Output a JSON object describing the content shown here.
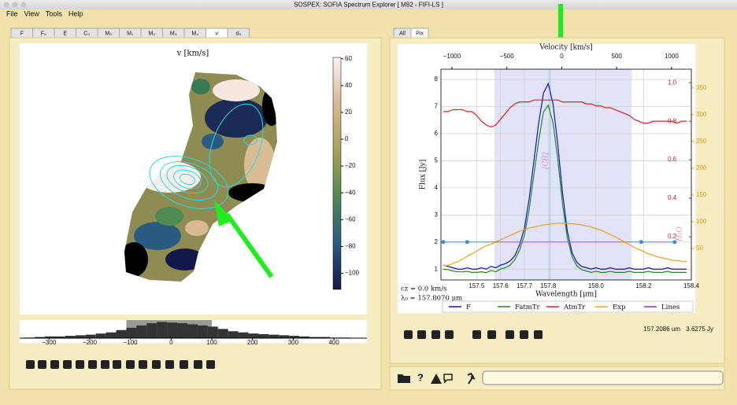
{
  "window": {
    "title": "SOSPEX: SOFIA Spectrum Explorer [ M82 - FIFI-LS ]"
  },
  "menu": [
    "File",
    "View",
    "Tools",
    "Help"
  ],
  "left_tabs": [
    "F",
    "Fᵤ",
    "E",
    "C₀",
    "M₀",
    "M₁",
    "M₂",
    "M₃",
    "M₄",
    "v",
    "σᵥ"
  ],
  "right_tabs": [
    "All",
    "Pix"
  ],
  "map": {
    "title": "v [km/s]",
    "clim": [
      -112,
      61
    ],
    "cticks": [
      60,
      40,
      20,
      0,
      {
        "value": -20,
        "label": "−20"
      },
      {
        "value": -40,
        "label": "−40"
      },
      {
        "value": -60,
        "label": "−60"
      },
      {
        "value": -80,
        "label": "−80"
      },
      {
        "value": -100,
        "label": "−100"
      }
    ]
  },
  "histogram": {
    "xlim": [
      -372,
      481
    ],
    "ylim": [
      0,
      30
    ],
    "selection": [
      -110,
      100
    ],
    "xticks": [
      {
        "value": -300,
        "label": "−300"
      },
      {
        "value": -200,
        "label": "−200"
      },
      {
        "value": -100,
        "label": "−100"
      },
      0,
      100,
      200,
      300,
      400
    ],
    "bins": [
      -360,
      -335,
      -310,
      -285,
      -260,
      -235,
      -210,
      -185,
      -160,
      -135,
      -110,
      -85,
      -60,
      -35,
      -10,
      15,
      40,
      65,
      90,
      115,
      140,
      165,
      190,
      215,
      240,
      265,
      290,
      315,
      340,
      365,
      390,
      415,
      440
    ],
    "counts": [
      1,
      2,
      3,
      3,
      4,
      5,
      6,
      8,
      10,
      14,
      18,
      22,
      26,
      28,
      27,
      26,
      24,
      22,
      20,
      16,
      12,
      10,
      8,
      7,
      6,
      5,
      4,
      3,
      2,
      2,
      1,
      1
    ]
  },
  "spectrum": {
    "xlabel": "Wavelength [μm]",
    "ylabel": "Flux [Jy]",
    "top_label": "Velocity [km/s]",
    "xlim": [
      157.35,
      158.4
    ],
    "xticks": [
      157.5,
      157.6,
      157.7,
      157.8,
      {
        "value": 158,
        "label": "158.0"
      },
      158.2,
      158.4
    ],
    "vlim": [
      -1100,
      1180
    ],
    "vticks": [
      {
        "value": -1000,
        "label": "−1000"
      },
      {
        "value": -500,
        "label": "−500"
      },
      0,
      500,
      1000
    ],
    "ylim": [
      0.6,
      8.38
    ],
    "yticks": [
      1,
      2,
      3,
      4,
      5,
      6,
      7,
      8
    ],
    "y2lim": [
      -0.024,
      1.07
    ],
    "y2ticks": [
      0.2,
      0.4,
      0.6,
      0.8,
      {
        "value": 1,
        "label": "1.0"
      }
    ],
    "y2color": "#d01818",
    "y3lim": [
      -9,
      385
    ],
    "y3ticks": [
      50,
      100,
      150,
      200,
      250,
      300,
      350
    ],
    "y3color": "#e0961a",
    "region": [
      157.574,
      158.15
    ],
    "rest_line": 157.807,
    "x": [
      157.36,
      157.38,
      157.4,
      157.42,
      157.44,
      157.46,
      157.48,
      157.5,
      157.52,
      157.54,
      157.56,
      157.58,
      157.6,
      157.62,
      157.64,
      157.66,
      157.68,
      157.7,
      157.72,
      157.74,
      157.76,
      157.78,
      157.8,
      157.82,
      157.84,
      157.86,
      157.88,
      157.9,
      157.92,
      157.94,
      157.96,
      157.98,
      158.0,
      158.02,
      158.04,
      158.06,
      158.08,
      158.1,
      158.12,
      158.14,
      158.16,
      158.18,
      158.2,
      158.22,
      158.24,
      158.26,
      158.28,
      158.3,
      158.32,
      158.34,
      158.36,
      158.38
    ],
    "series": [
      {
        "name": "F",
        "color": "#1212c8",
        "values": [
          1.15,
          1.1,
          1.05,
          1.0,
          1.0,
          1.05,
          1.0,
          1.0,
          1.05,
          1.0,
          1.1,
          1.05,
          1.15,
          1.2,
          1.3,
          1.5,
          1.9,
          2.5,
          3.6,
          5.0,
          6.4,
          7.5,
          7.85,
          7.1,
          5.6,
          3.8,
          2.4,
          1.6,
          1.25,
          1.1,
          1.05,
          1.0,
          1.05,
          1.0,
          1.0,
          1.05,
          1.0,
          1.0,
          1.0,
          1.05,
          1.0,
          1.0,
          1.0,
          1.05,
          1.0,
          1.0,
          1.0,
          1.05,
          1.0,
          1.0,
          1.0,
          1.0
        ]
      },
      {
        "name": "FatmTr",
        "color": "#1c8c1c",
        "values": [
          1.0,
          0.98,
          0.93,
          0.9,
          0.9,
          0.92,
          0.88,
          0.88,
          0.9,
          0.87,
          0.95,
          0.9,
          1.0,
          1.05,
          1.15,
          1.35,
          1.7,
          2.25,
          3.2,
          4.5,
          5.75,
          6.8,
          7.05,
          6.4,
          5.05,
          3.4,
          2.15,
          1.45,
          1.12,
          0.98,
          0.93,
          0.88,
          0.92,
          0.88,
          0.88,
          0.92,
          0.88,
          0.88,
          0.88,
          0.92,
          0.88,
          0.88,
          0.88,
          0.92,
          0.88,
          0.88,
          0.88,
          0.92,
          0.88,
          0.88,
          0.88,
          0.88
        ]
      },
      {
        "name": "AtmTr",
        "color": "#e02020",
        "axis": "y2",
        "values": [
          0.85,
          0.85,
          0.86,
          0.86,
          0.86,
          0.85,
          0.85,
          0.83,
          0.8,
          0.78,
          0.77,
          0.78,
          0.81,
          0.84,
          0.87,
          0.89,
          0.9,
          0.9,
          0.9,
          0.91,
          0.91,
          0.91,
          0.91,
          0.91,
          0.91,
          0.9,
          0.9,
          0.9,
          0.9,
          0.9,
          0.89,
          0.89,
          0.88,
          0.88,
          0.87,
          0.87,
          0.86,
          0.85,
          0.84,
          0.83,
          0.81,
          0.8,
          0.79,
          0.79,
          0.8,
          0.8,
          0.8,
          0.8,
          0.8,
          0.79,
          0.8,
          0.8
        ]
      },
      {
        "name": "Exp",
        "color": "#f0a020",
        "axis": "y3",
        "values": [
          18,
          18,
          22,
          25,
          30,
          35,
          40,
          45,
          50,
          55,
          58,
          62,
          66,
          70,
          74,
          78,
          82,
          85,
          88,
          90,
          92,
          94,
          95,
          96,
          97,
          97,
          97,
          96,
          95,
          94,
          92,
          90,
          87,
          84,
          80,
          76,
          72,
          67,
          62,
          57,
          52,
          48,
          44,
          40,
          37,
          34,
          32,
          30,
          28,
          27,
          26,
          25
        ]
      }
    ],
    "lines_legend": {
      "name": "Lines",
      "color": "#9a2ea8"
    },
    "continuum": {
      "x": [
        157.36,
        157.46,
        158.19,
        158.33
      ],
      "y": [
        2,
        2,
        2,
        2
      ],
      "color": "#3a90d0"
    },
    "annotations": [
      {
        "text": "[CII]",
        "x": 157.79,
        "y": 5
      },
      {
        "text": "H₂O",
        "x": 158.35,
        "y": 2.3
      }
    ],
    "info": [
      "cz = 0.0 km/s",
      "λ₀ = 157.8070 μm"
    ]
  },
  "status": {
    "wavelength": "157.2086 um",
    "flux": "3.6275 Jy"
  },
  "bottom": {
    "help": "?"
  }
}
